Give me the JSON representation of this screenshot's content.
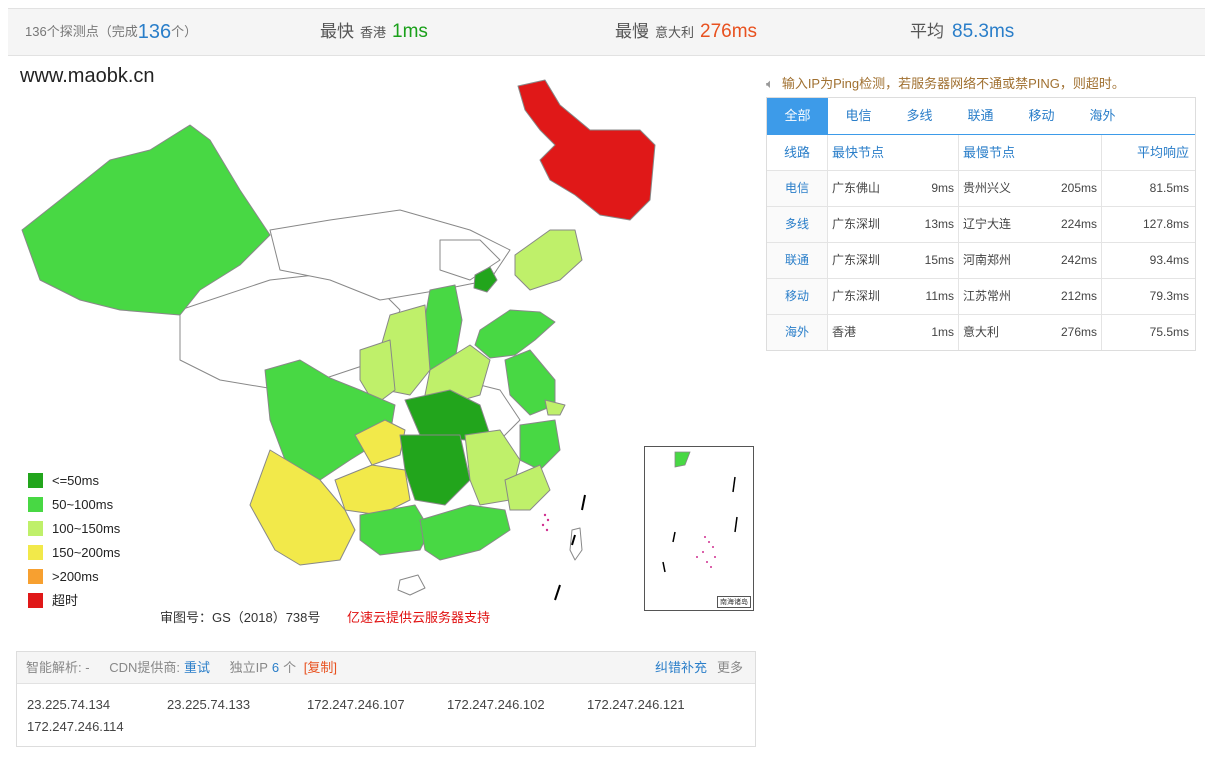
{
  "stats": {
    "probes_prefix": "136个探测点（完成",
    "probes_done": "136",
    "probes_suffix": "个）",
    "fastest_label": "最快",
    "fastest_loc": "香港",
    "fastest_value": "1ms",
    "slowest_label": "最慢",
    "slowest_loc": "意大利",
    "slowest_value": "276ms",
    "avg_label": "平均",
    "avg_value": "85.3ms"
  },
  "map": {
    "site": "www.maobk.cn",
    "approval": "审图号：GS（2018）738号",
    "sponsor": "亿速云提供云服务器支持",
    "inset_label": "南海诸岛",
    "legend": [
      {
        "label": "<=50ms",
        "color": "#22a51c"
      },
      {
        "label": "50~100ms",
        "color": "#48d844"
      },
      {
        "label": "100~150ms",
        "color": "#bff06a"
      },
      {
        "label": "150~200ms",
        "color": "#f2e94a"
      },
      {
        "label": ">200ms",
        "color": "#f7a030"
      },
      {
        "label": "超时",
        "color": "#e01818"
      }
    ]
  },
  "notice": "输入IP为Ping检测，若服务器网络不通或禁PING，则超时。",
  "tabs": [
    "全部",
    "电信",
    "多线",
    "联通",
    "移动",
    "海外"
  ],
  "table": {
    "headers": {
      "line": "线路",
      "fast": "最快节点",
      "slow": "最慢节点",
      "avg": "平均响应"
    },
    "rows": [
      {
        "line": "电信",
        "fast_node": "广东佛山",
        "fast_ms": "9ms",
        "slow_node": "贵州兴义",
        "slow_ms": "205ms",
        "avg": "81.5ms"
      },
      {
        "line": "多线",
        "fast_node": "广东深圳",
        "fast_ms": "13ms",
        "slow_node": "辽宁大连",
        "slow_ms": "224ms",
        "avg": "127.8ms"
      },
      {
        "line": "联通",
        "fast_node": "广东深圳",
        "fast_ms": "15ms",
        "slow_node": "河南郑州",
        "slow_ms": "242ms",
        "avg": "93.4ms"
      },
      {
        "line": "移动",
        "fast_node": "广东深圳",
        "fast_ms": "11ms",
        "slow_node": "江苏常州",
        "slow_ms": "212ms",
        "avg": "79.3ms"
      },
      {
        "line": "海外",
        "fast_node": "香港",
        "fast_ms": "1ms",
        "slow_node": "意大利",
        "slow_ms": "276ms",
        "avg": "75.5ms"
      }
    ]
  },
  "dns": {
    "smart_label": "智能解析: -",
    "cdn_label": "CDN提供商:",
    "cdn_link": "重试",
    "ip_label": "独立IP",
    "ip_count": "6",
    "ip_unit": "个",
    "copy": "[复制]",
    "report": "纠错补充",
    "more": "更多",
    "ips": [
      "23.225.74.134",
      "23.225.74.133",
      "172.247.246.107",
      "172.247.246.102",
      "172.247.246.121",
      "172.247.246.114"
    ]
  }
}
